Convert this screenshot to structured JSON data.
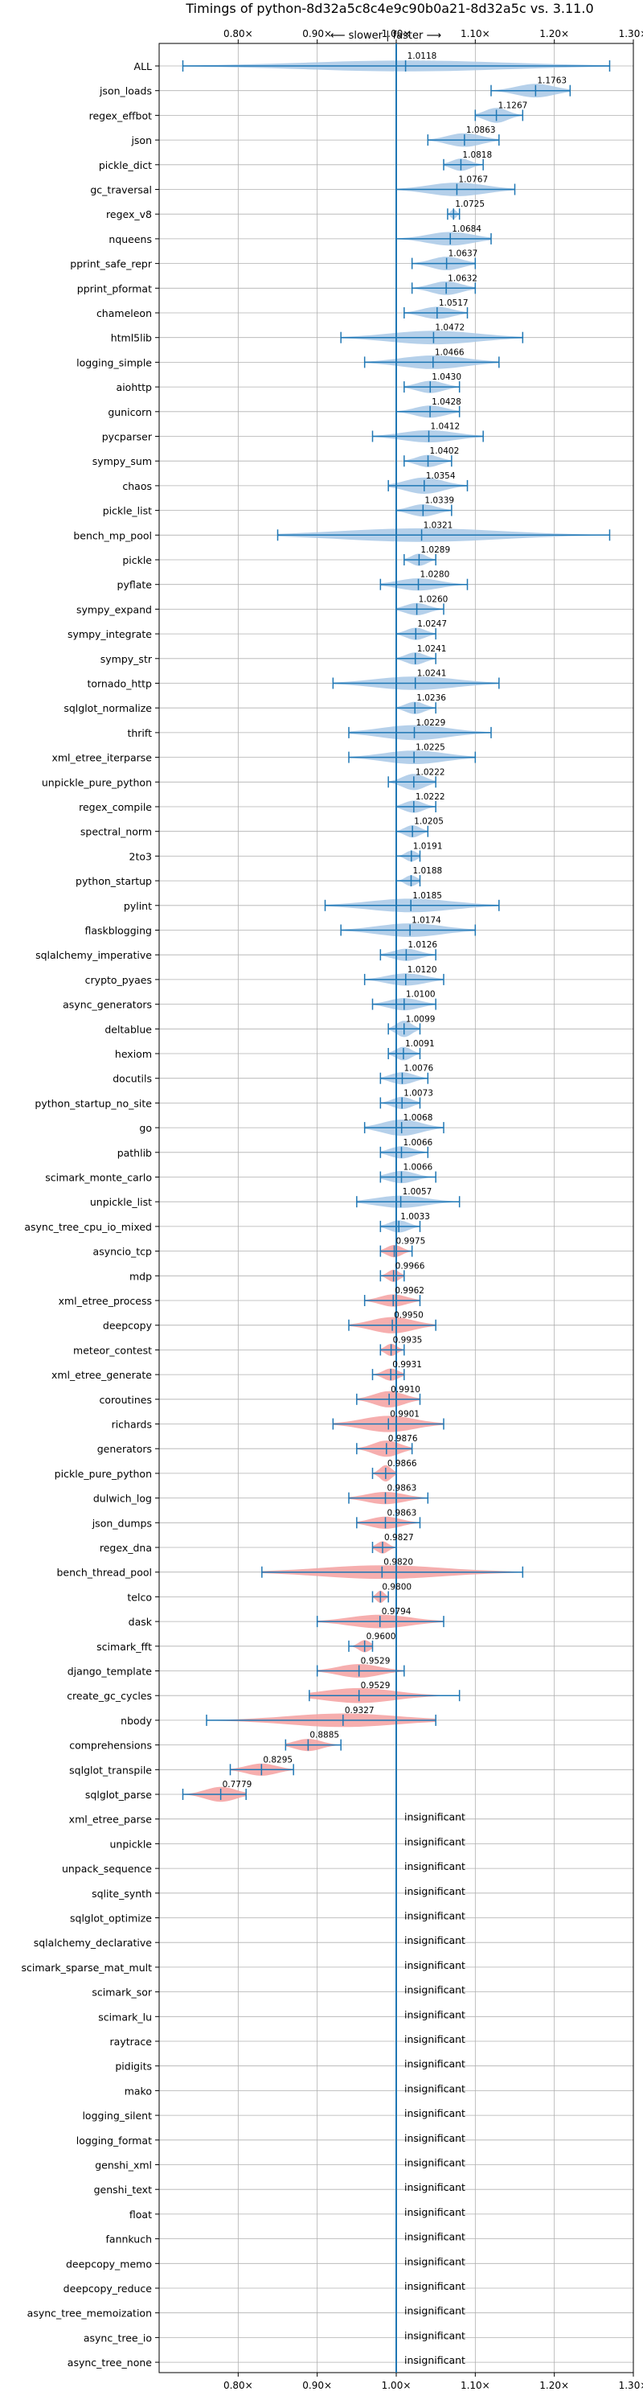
{
  "chart_data": {
    "type": "violin",
    "title": "Timings of python-8d32a5c8c4e9c90b0a21-8d32a5c vs. 3.11.0",
    "direction_label": "⟵ slower | faster ⟶",
    "xlim": [
      0.7,
      1.3
    ],
    "xticks": [
      0.8,
      0.9,
      1.0,
      1.1,
      1.2,
      1.3
    ],
    "xtick_labels": [
      "0.80×",
      "0.90×",
      "1.00×",
      "1.10×",
      "1.20×",
      "1.30×"
    ],
    "grid": true,
    "reference_line": 1.0,
    "colors": {
      "faster": "#a8c8e6",
      "slower": "#f4a0a0",
      "accent": "#1f77b4"
    },
    "insignificant_label": "insignificant",
    "benchmarks": [
      {
        "name": "ALL",
        "value": 1.0118,
        "lo": 0.73,
        "hi": 1.27,
        "width": 0.4,
        "label": "1.0118"
      },
      {
        "name": "json_loads",
        "value": 1.1763,
        "lo": 1.12,
        "hi": 1.22,
        "width": 0.5,
        "label": "1.1763"
      },
      {
        "name": "regex_effbot",
        "value": 1.1267,
        "lo": 1.1,
        "hi": 1.16,
        "width": 0.55,
        "label": "1.1267"
      },
      {
        "name": "json",
        "value": 1.0863,
        "lo": 1.04,
        "hi": 1.13,
        "width": 0.5,
        "label": "1.0863"
      },
      {
        "name": "pickle_dict",
        "value": 1.0818,
        "lo": 1.06,
        "hi": 1.11,
        "width": 0.45,
        "label": "1.0818"
      },
      {
        "name": "gc_traversal",
        "value": 1.0767,
        "lo": 1.0,
        "hi": 1.15,
        "width": 0.5,
        "label": "1.0767"
      },
      {
        "name": "regex_v8",
        "value": 1.0725,
        "lo": 1.065,
        "hi": 1.08,
        "width": 0.35,
        "label": "1.0725"
      },
      {
        "name": "nqueens",
        "value": 1.0684,
        "lo": 1.0,
        "hi": 1.12,
        "width": 0.5,
        "label": "1.0684"
      },
      {
        "name": "pprint_safe_repr",
        "value": 1.0637,
        "lo": 1.02,
        "hi": 1.1,
        "width": 0.5,
        "label": "1.0637"
      },
      {
        "name": "pprint_pformat",
        "value": 1.0632,
        "lo": 1.02,
        "hi": 1.1,
        "width": 0.5,
        "label": "1.0632"
      },
      {
        "name": "chameleon",
        "value": 1.0517,
        "lo": 1.01,
        "hi": 1.09,
        "width": 0.45,
        "label": "1.0517"
      },
      {
        "name": "html5lib",
        "value": 1.0472,
        "lo": 0.93,
        "hi": 1.16,
        "width": 0.5,
        "label": "1.0472"
      },
      {
        "name": "logging_simple",
        "value": 1.0466,
        "lo": 0.96,
        "hi": 1.13,
        "width": 0.5,
        "label": "1.0466"
      },
      {
        "name": "aiohttp",
        "value": 1.043,
        "lo": 1.01,
        "hi": 1.08,
        "width": 0.45,
        "label": "1.0430"
      },
      {
        "name": "gunicorn",
        "value": 1.0428,
        "lo": 1.0,
        "hi": 1.08,
        "width": 0.45,
        "label": "1.0428"
      },
      {
        "name": "pycparser",
        "value": 1.0412,
        "lo": 0.97,
        "hi": 1.11,
        "width": 0.45,
        "label": "1.0412"
      },
      {
        "name": "sympy_sum",
        "value": 1.0402,
        "lo": 1.01,
        "hi": 1.07,
        "width": 0.45,
        "label": "1.0402"
      },
      {
        "name": "chaos",
        "value": 1.0354,
        "lo": 0.99,
        "hi": 1.09,
        "width": 0.6,
        "label": "1.0354"
      },
      {
        "name": "pickle_list",
        "value": 1.0339,
        "lo": 1.0,
        "hi": 1.07,
        "width": 0.45,
        "label": "1.0339"
      },
      {
        "name": "bench_mp_pool",
        "value": 1.0321,
        "lo": 0.85,
        "hi": 1.27,
        "width": 0.5,
        "label": "1.0321"
      },
      {
        "name": "pickle",
        "value": 1.0289,
        "lo": 1.01,
        "hi": 1.05,
        "width": 0.45,
        "label": "1.0289"
      },
      {
        "name": "pyflate",
        "value": 1.028,
        "lo": 0.98,
        "hi": 1.09,
        "width": 0.45,
        "label": "1.0280"
      },
      {
        "name": "sympy_expand",
        "value": 1.026,
        "lo": 1.0,
        "hi": 1.06,
        "width": 0.45,
        "label": "1.0260"
      },
      {
        "name": "sympy_integrate",
        "value": 1.0247,
        "lo": 1.0,
        "hi": 1.05,
        "width": 0.45,
        "label": "1.0247"
      },
      {
        "name": "sympy_str",
        "value": 1.0241,
        "lo": 1.0,
        "hi": 1.05,
        "width": 0.45,
        "label": "1.0241"
      },
      {
        "name": "tornado_http",
        "value": 1.0241,
        "lo": 0.92,
        "hi": 1.13,
        "width": 0.5,
        "label": "1.0241"
      },
      {
        "name": "sqlglot_normalize",
        "value": 1.0236,
        "lo": 1.0,
        "hi": 1.05,
        "width": 0.45,
        "label": "1.0236"
      },
      {
        "name": "thrift",
        "value": 1.0229,
        "lo": 0.94,
        "hi": 1.12,
        "width": 0.55,
        "label": "1.0229"
      },
      {
        "name": "xml_etree_iterparse",
        "value": 1.0225,
        "lo": 0.94,
        "hi": 1.1,
        "width": 0.5,
        "label": "1.0225"
      },
      {
        "name": "unpickle_pure_python",
        "value": 1.0222,
        "lo": 0.99,
        "hi": 1.05,
        "width": 0.6,
        "label": "1.0222"
      },
      {
        "name": "regex_compile",
        "value": 1.0222,
        "lo": 1.0,
        "hi": 1.05,
        "width": 0.45,
        "label": "1.0222"
      },
      {
        "name": "spectral_norm",
        "value": 1.0205,
        "lo": 1.0,
        "hi": 1.04,
        "width": 0.45,
        "label": "1.0205"
      },
      {
        "name": "2to3",
        "value": 1.0191,
        "lo": 1.0,
        "hi": 1.03,
        "width": 0.4,
        "label": "1.0191"
      },
      {
        "name": "python_startup",
        "value": 1.0188,
        "lo": 1.0,
        "hi": 1.03,
        "width": 0.4,
        "label": "1.0188"
      },
      {
        "name": "pylint",
        "value": 1.0185,
        "lo": 0.91,
        "hi": 1.13,
        "width": 0.5,
        "label": "1.0185"
      },
      {
        "name": "flaskblogging",
        "value": 1.0174,
        "lo": 0.93,
        "hi": 1.1,
        "width": 0.5,
        "label": "1.0174"
      },
      {
        "name": "sqlalchemy_imperative",
        "value": 1.0126,
        "lo": 0.98,
        "hi": 1.05,
        "width": 0.45,
        "label": "1.0126"
      },
      {
        "name": "crypto_pyaes",
        "value": 1.012,
        "lo": 0.96,
        "hi": 1.06,
        "width": 0.45,
        "label": "1.0120"
      },
      {
        "name": "async_generators",
        "value": 1.01,
        "lo": 0.97,
        "hi": 1.05,
        "width": 0.45,
        "label": "1.0100"
      },
      {
        "name": "deltablue",
        "value": 1.0099,
        "lo": 0.99,
        "hi": 1.03,
        "width": 0.6,
        "label": "1.0099"
      },
      {
        "name": "hexiom",
        "value": 1.0091,
        "lo": 0.99,
        "hi": 1.03,
        "width": 0.5,
        "label": "1.0091"
      },
      {
        "name": "docutils",
        "value": 1.0076,
        "lo": 0.98,
        "hi": 1.04,
        "width": 0.45,
        "label": "1.0076"
      },
      {
        "name": "python_startup_no_site",
        "value": 1.0073,
        "lo": 0.98,
        "hi": 1.03,
        "width": 0.45,
        "label": "1.0073"
      },
      {
        "name": "go",
        "value": 1.0068,
        "lo": 0.96,
        "hi": 1.06,
        "width": 0.6,
        "label": "1.0068"
      },
      {
        "name": "pathlib",
        "value": 1.0066,
        "lo": 0.98,
        "hi": 1.04,
        "width": 0.45,
        "label": "1.0066"
      },
      {
        "name": "scimark_monte_carlo",
        "value": 1.0066,
        "lo": 0.98,
        "hi": 1.05,
        "width": 0.45,
        "label": "1.0066"
      },
      {
        "name": "unpickle_list",
        "value": 1.0057,
        "lo": 0.95,
        "hi": 1.08,
        "width": 0.45,
        "label": "1.0057"
      },
      {
        "name": "async_tree_cpu_io_mixed",
        "value": 1.0033,
        "lo": 0.98,
        "hi": 1.03,
        "width": 0.45,
        "label": "1.0033"
      },
      {
        "name": "asyncio_tcp",
        "value": 0.9975,
        "lo": 0.98,
        "hi": 1.02,
        "width": 0.45,
        "label": "0.9975"
      },
      {
        "name": "mdp",
        "value": 0.9966,
        "lo": 0.98,
        "hi": 1.01,
        "width": 0.45,
        "label": "0.9966"
      },
      {
        "name": "xml_etree_process",
        "value": 0.9962,
        "lo": 0.96,
        "hi": 1.03,
        "width": 0.45,
        "label": "0.9962"
      },
      {
        "name": "deepcopy",
        "value": 0.995,
        "lo": 0.94,
        "hi": 1.05,
        "width": 0.6,
        "label": "0.9950"
      },
      {
        "name": "meteor_contest",
        "value": 0.9935,
        "lo": 0.98,
        "hi": 1.01,
        "width": 0.45,
        "label": "0.9935"
      },
      {
        "name": "xml_etree_generate",
        "value": 0.9931,
        "lo": 0.97,
        "hi": 1.01,
        "width": 0.45,
        "label": "0.9931"
      },
      {
        "name": "coroutines",
        "value": 0.991,
        "lo": 0.95,
        "hi": 1.03,
        "width": 0.6,
        "label": "0.9910"
      },
      {
        "name": "richards",
        "value": 0.9901,
        "lo": 0.92,
        "hi": 1.06,
        "width": 0.6,
        "label": "0.9901"
      },
      {
        "name": "generators",
        "value": 0.9876,
        "lo": 0.95,
        "hi": 1.02,
        "width": 0.6,
        "label": "0.9876"
      },
      {
        "name": "pickle_pure_python",
        "value": 0.9866,
        "lo": 0.97,
        "hi": 1.0,
        "width": 0.6,
        "label": "0.9866"
      },
      {
        "name": "dulwich_log",
        "value": 0.9863,
        "lo": 0.94,
        "hi": 1.04,
        "width": 0.45,
        "label": "0.9863"
      },
      {
        "name": "json_dumps",
        "value": 0.9863,
        "lo": 0.95,
        "hi": 1.03,
        "width": 0.45,
        "label": "0.9863"
      },
      {
        "name": "regex_dna",
        "value": 0.9827,
        "lo": 0.97,
        "hi": 1.0,
        "width": 0.45,
        "label": "0.9827"
      },
      {
        "name": "bench_thread_pool",
        "value": 0.982,
        "lo": 0.83,
        "hi": 1.16,
        "width": 0.5,
        "label": "0.9820"
      },
      {
        "name": "telco",
        "value": 0.98,
        "lo": 0.97,
        "hi": 0.99,
        "width": 0.45,
        "label": "0.9800"
      },
      {
        "name": "dask",
        "value": 0.9794,
        "lo": 0.9,
        "hi": 1.06,
        "width": 0.5,
        "label": "0.9794"
      },
      {
        "name": "scimark_fft",
        "value": 0.96,
        "lo": 0.94,
        "hi": 0.97,
        "width": 0.45,
        "label": "0.9600"
      },
      {
        "name": "django_template",
        "value": 0.9529,
        "lo": 0.9,
        "hi": 1.01,
        "width": 0.5,
        "label": "0.9529"
      },
      {
        "name": "create_gc_cycles",
        "value": 0.9529,
        "lo": 0.89,
        "hi": 1.08,
        "width": 0.55,
        "label": "0.9529"
      },
      {
        "name": "nbody",
        "value": 0.9327,
        "lo": 0.76,
        "hi": 1.05,
        "width": 0.5,
        "label": "0.9327"
      },
      {
        "name": "comprehensions",
        "value": 0.8885,
        "lo": 0.86,
        "hi": 0.93,
        "width": 0.45,
        "label": "0.8885"
      },
      {
        "name": "sqlglot_transpile",
        "value": 0.8295,
        "lo": 0.79,
        "hi": 0.87,
        "width": 0.45,
        "label": "0.8295"
      },
      {
        "name": "sqlglot_parse",
        "value": 0.7779,
        "lo": 0.73,
        "hi": 0.81,
        "width": 0.55,
        "label": "0.7779"
      },
      {
        "name": "xml_etree_parse",
        "insignificant": true
      },
      {
        "name": "unpickle",
        "insignificant": true
      },
      {
        "name": "unpack_sequence",
        "insignificant": true
      },
      {
        "name": "sqlite_synth",
        "insignificant": true
      },
      {
        "name": "sqlglot_optimize",
        "insignificant": true
      },
      {
        "name": "sqlalchemy_declarative",
        "insignificant": true
      },
      {
        "name": "scimark_sparse_mat_mult",
        "insignificant": true
      },
      {
        "name": "scimark_sor",
        "insignificant": true
      },
      {
        "name": "scimark_lu",
        "insignificant": true
      },
      {
        "name": "raytrace",
        "insignificant": true
      },
      {
        "name": "pidigits",
        "insignificant": true
      },
      {
        "name": "mako",
        "insignificant": true
      },
      {
        "name": "logging_silent",
        "insignificant": true
      },
      {
        "name": "logging_format",
        "insignificant": true
      },
      {
        "name": "genshi_xml",
        "insignificant": true
      },
      {
        "name": "genshi_text",
        "insignificant": true
      },
      {
        "name": "float",
        "insignificant": true
      },
      {
        "name": "fannkuch",
        "insignificant": true
      },
      {
        "name": "deepcopy_memo",
        "insignificant": true
      },
      {
        "name": "deepcopy_reduce",
        "insignificant": true
      },
      {
        "name": "async_tree_memoization",
        "insignificant": true
      },
      {
        "name": "async_tree_io",
        "insignificant": true
      },
      {
        "name": "async_tree_none",
        "insignificant": true
      }
    ]
  }
}
